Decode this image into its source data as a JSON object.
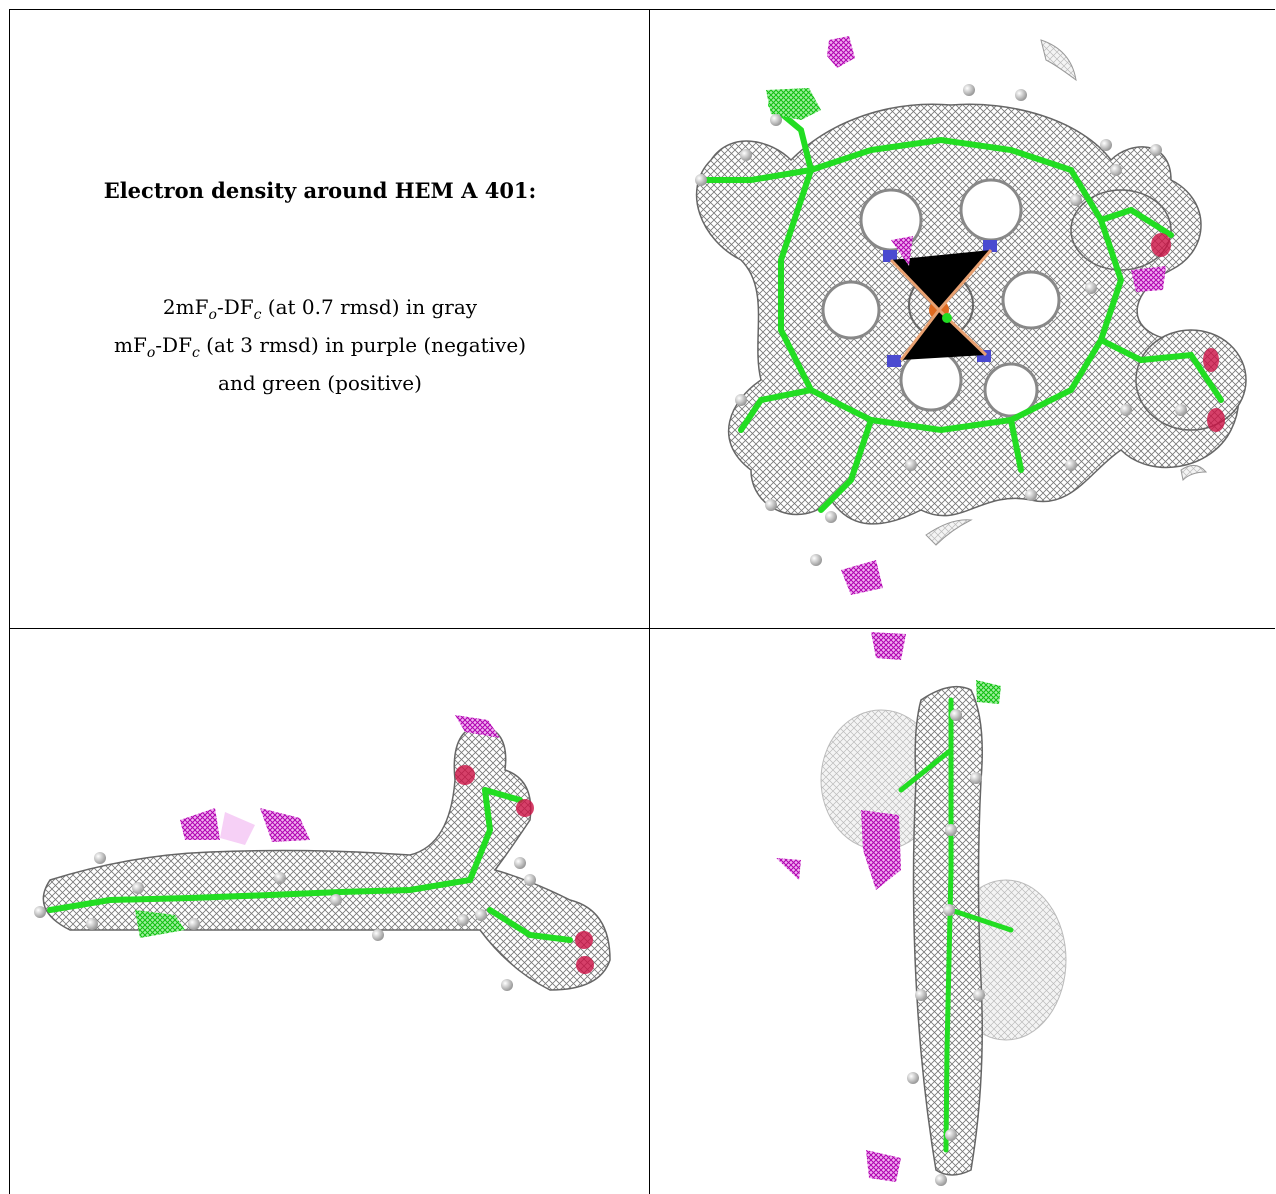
{
  "legend": {
    "title": "Electron density around HEM A 401:",
    "line1": {
      "a": "2mF",
      "a_sub": "o",
      "b": "-DF",
      "b_sub": "c",
      "rest": " (at 0.7 rmsd) in gray"
    },
    "line2": {
      "a": "mF",
      "a_sub": "o",
      "b": "-DF",
      "b_sub": "c",
      "rest": " (at 3 rmsd) in purple (negative)"
    },
    "line3": "and green (positive)"
  },
  "panels": [
    {
      "view": "top"
    },
    {
      "view": "side"
    },
    {
      "view": "edge"
    }
  ],
  "colors": {
    "density_gray": "#8a8a8a",
    "positive_green": "#22dd22",
    "negative_purple": "#cc00cc",
    "nitrogen_blue": "#4a4ad0",
    "oxygen_red": "#cc1044",
    "iron_orange": "#e06a20"
  }
}
